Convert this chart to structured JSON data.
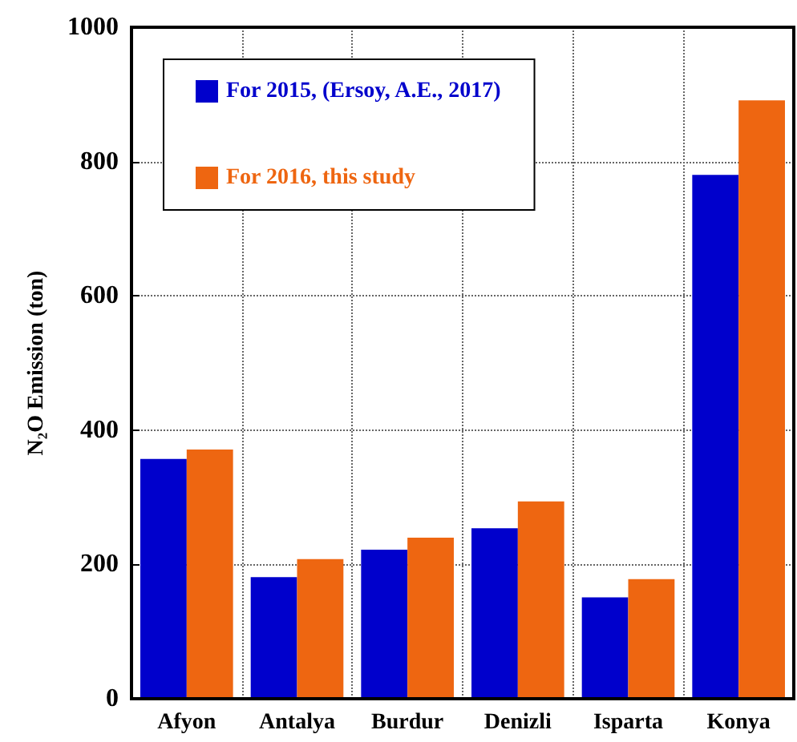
{
  "chart_data": {
    "type": "bar",
    "ylabel": "N₂O Emission (ton)",
    "categories": [
      "Afyon",
      "Antalya",
      "Burdur",
      "Denizli",
      "Isparta",
      "Konya"
    ],
    "series": [
      {
        "name": "For 2015, (Ersoy, A.E., 2017)",
        "color": "#0000cc",
        "values": [
          357,
          181,
          222,
          254,
          151,
          780
        ]
      },
      {
        "name": "For 2016, this study",
        "color": "#ee6611",
        "values": [
          371,
          208,
          240,
          294,
          178,
          891
        ]
      }
    ],
    "ylim": [
      0,
      1000
    ],
    "yticks": [
      0,
      200,
      400,
      600,
      800,
      1000
    ],
    "grid": true,
    "legend": "top left"
  }
}
